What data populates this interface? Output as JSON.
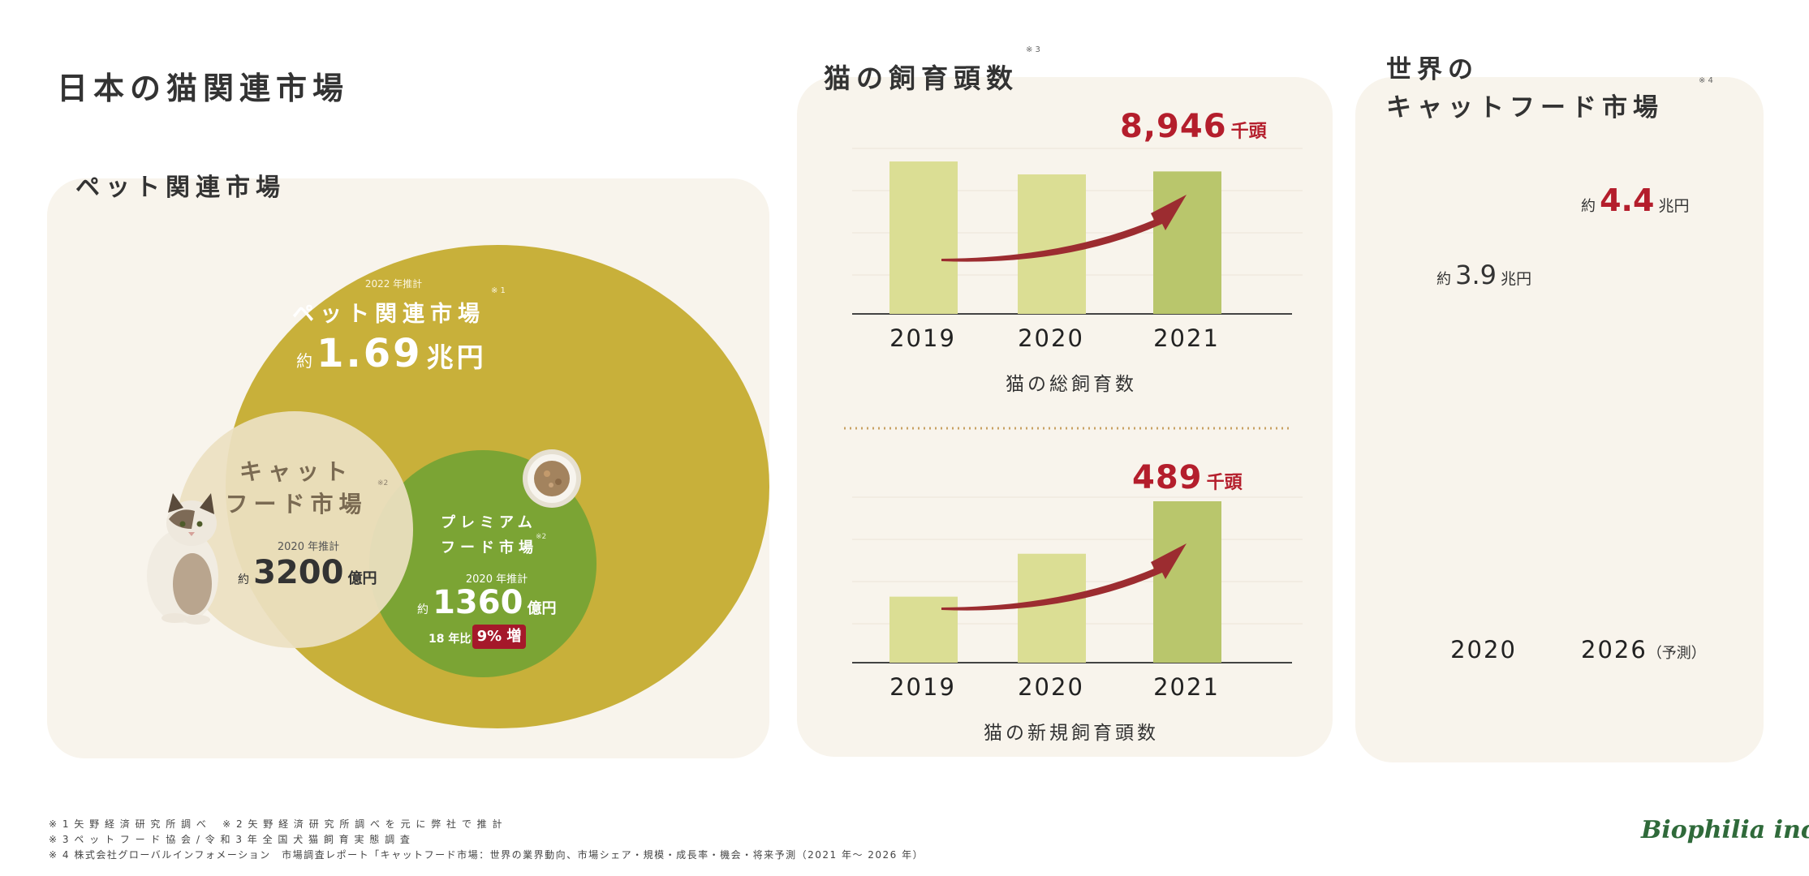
{
  "page": {
    "title": "日本の猫関連市場",
    "logo": "Biophilia inc."
  },
  "pet_market": {
    "section_title": "ペット関連市場",
    "outer": {
      "year_label": "2022 年推計",
      "name": "ペット関連市場",
      "note": "※ 1",
      "approx": "約",
      "value": "1.69",
      "unit": "兆円"
    },
    "catfood": {
      "name_line1": "キャット",
      "name_line2": "フード市場",
      "note": "※2",
      "year_label": "2020 年推計",
      "approx": "約",
      "value": "3200",
      "unit": "億円"
    },
    "premium": {
      "name_line1": "プレミアム",
      "name_line2": "フード市場",
      "note": "※2",
      "year_label": "2020 年推計",
      "approx": "約",
      "value": "1360",
      "unit": "億円",
      "compare_label": "18 年比",
      "growth_badge": "9% 増"
    }
  },
  "cat_count": {
    "title": "猫の飼育頭数",
    "note": "※ 3",
    "total": {
      "highlight_value": "8,946",
      "highlight_unit": "千頭",
      "caption": "猫の総飼育数"
    },
    "new": {
      "highlight_value": "489",
      "highlight_unit": "千頭",
      "caption": "猫の新規飼育頭数"
    }
  },
  "world": {
    "title_line1": "世界の",
    "title_line2": "キャットフード市場",
    "note": "※ 4",
    "label_2020": {
      "approx": "約",
      "value": "3.9",
      "unit": "兆円"
    },
    "label_2026": {
      "approx": "約",
      "value": "4.4",
      "unit": "兆円"
    },
    "forecast_label": "（予測）"
  },
  "footnotes": [
    "※ 1 矢 野 経 済 研 究 所 調 べ　 ※ 2  矢 野 経 済 研 究 所 調 べ を 元 に 弊 社 で 推 計",
    "※ 3 ペ ッ ト フ ー ド 協 会 / 令 和 3 年 全 国 犬 猫 飼 育 実 態 調 査",
    "※ 4 株式会社グローバルインフォメーション　市場調査レポート「キャットフード市場：世界の業界動向、市場シェア・規模・成長率・機会・将来予測（2021 年〜 2026 年）"
  ],
  "colors": {
    "panel_bg": "#f8f4ec",
    "outer_circle": "#c8b03a",
    "catfood_circle": "#ece0c2",
    "premium_circle": "#7ba434",
    "bar_light": "#dbde94",
    "bar_dark": "#b9c66c",
    "arrow": "#9c2c30",
    "highlight_text": "#b41e2c",
    "logo": "#2f6a3a"
  },
  "chart_data": [
    {
      "type": "bar",
      "title": "猫の総飼育数",
      "categories": [
        "2019",
        "2020",
        "2021"
      ],
      "values": [
        9100,
        8900,
        8946
      ],
      "value_labels": [
        "",
        "",
        "8,946"
      ],
      "unit": "千頭",
      "highlight_index": 2
    },
    {
      "type": "bar",
      "title": "猫の新規飼育頭数",
      "categories": [
        "2019",
        "2020",
        "2021"
      ],
      "values": [
        200,
        330,
        489
      ],
      "value_labels": [
        "",
        "",
        "489"
      ],
      "unit": "千頭",
      "highlight_index": 2
    },
    {
      "type": "bar",
      "title": "",
      "categories": [
        "2020",
        "2026"
      ],
      "values": [
        3.9,
        4.4
      ],
      "unit": "兆円",
      "highlight_index": 1
    }
  ]
}
